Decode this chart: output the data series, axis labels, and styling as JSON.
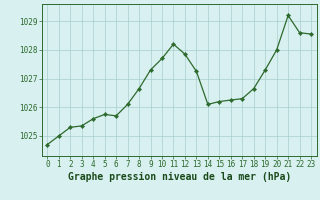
{
  "x": [
    0,
    1,
    2,
    3,
    4,
    5,
    6,
    7,
    8,
    9,
    10,
    11,
    12,
    13,
    14,
    15,
    16,
    17,
    18,
    19,
    20,
    21,
    22,
    23
  ],
  "y": [
    1024.7,
    1025.0,
    1025.3,
    1025.35,
    1025.6,
    1025.75,
    1025.7,
    1026.1,
    1026.65,
    1027.3,
    1027.7,
    1028.2,
    1027.85,
    1027.25,
    1026.1,
    1026.2,
    1026.25,
    1026.3,
    1026.65,
    1027.3,
    1028.0,
    1029.2,
    1028.6,
    1028.55
  ],
  "line_color": "#2d6a2d",
  "marker_color": "#2d6a2d",
  "bg_color": "#d8f0f0",
  "grid_color": "#a8cece",
  "xlabel": "Graphe pression niveau de la mer (hPa)",
  "xlabel_color": "#1a4a1a",
  "ylabel_ticks": [
    1025,
    1026,
    1027,
    1028,
    1029
  ],
  "xtick_labels": [
    "0",
    "1",
    "2",
    "3",
    "4",
    "5",
    "6",
    "7",
    "8",
    "9",
    "10",
    "11",
    "12",
    "13",
    "14",
    "15",
    "16",
    "17",
    "18",
    "19",
    "20",
    "21",
    "22",
    "23"
  ],
  "ylim": [
    1024.3,
    1029.6
  ],
  "xlim": [
    -0.5,
    23.5
  ],
  "tick_fontsize": 5.5,
  "xlabel_fontsize": 7.0
}
